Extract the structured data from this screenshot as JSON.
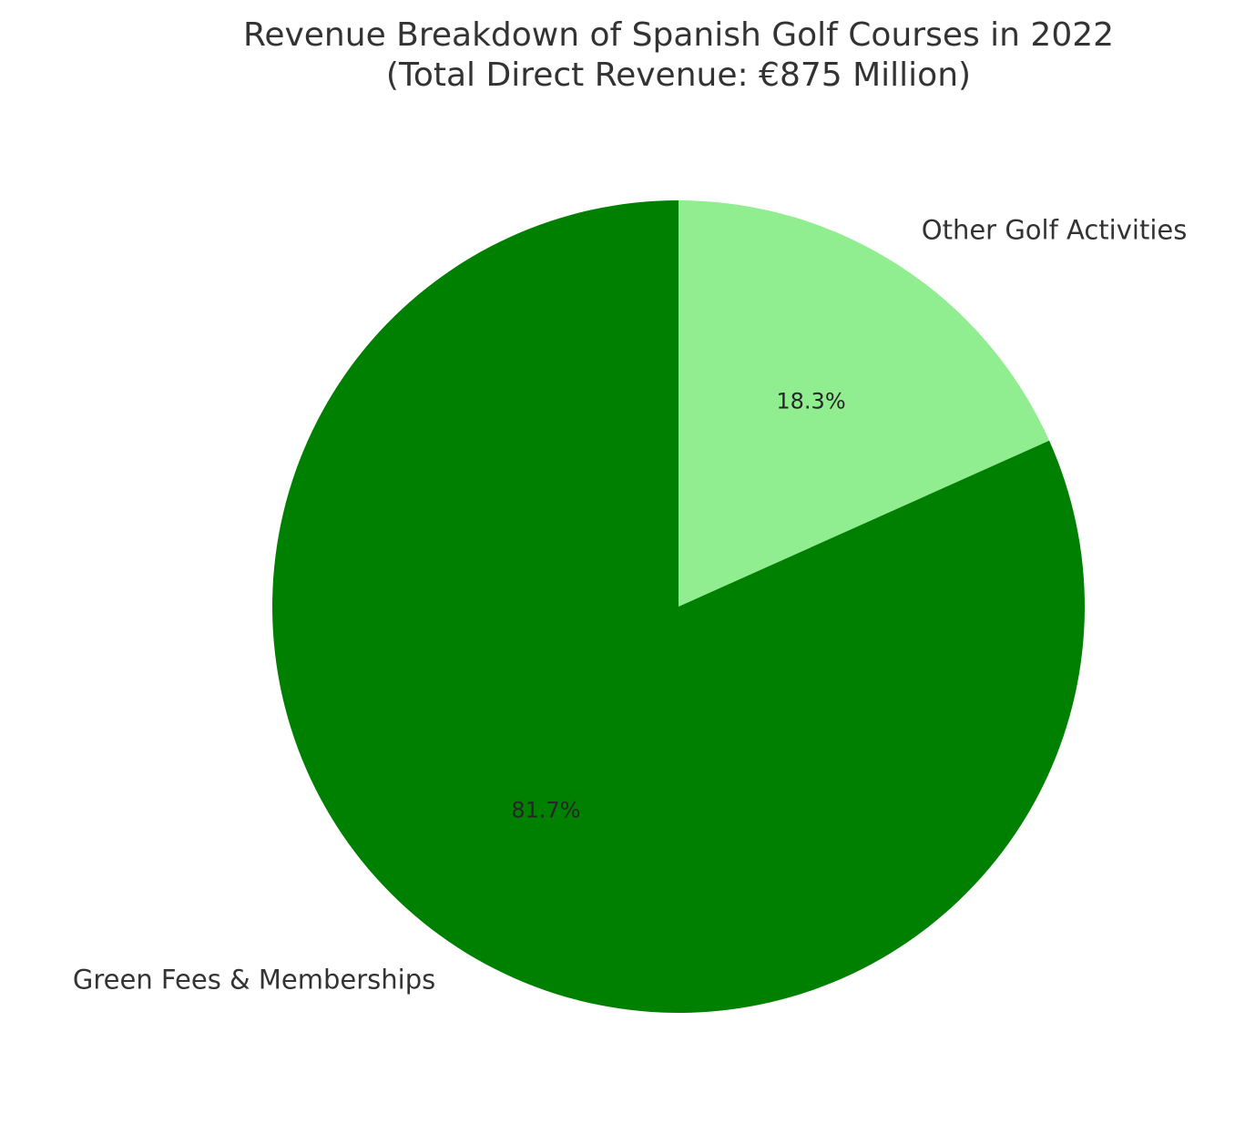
{
  "chart_data": {
    "type": "pie",
    "title": "Revenue Breakdown of Spanish Golf Courses in 2022",
    "subtitle": "(Total Direct Revenue: €875 Million)",
    "start_angle_deg": 90,
    "direction": "clockwise",
    "slices": [
      {
        "label": "Other Golf Activities",
        "value": 18.3,
        "pct_label": "18.3%",
        "color": "#90EE90"
      },
      {
        "label": "Green Fees & Memberships",
        "value": 81.7,
        "pct_label": "81.7%",
        "color": "#008000"
      }
    ]
  }
}
